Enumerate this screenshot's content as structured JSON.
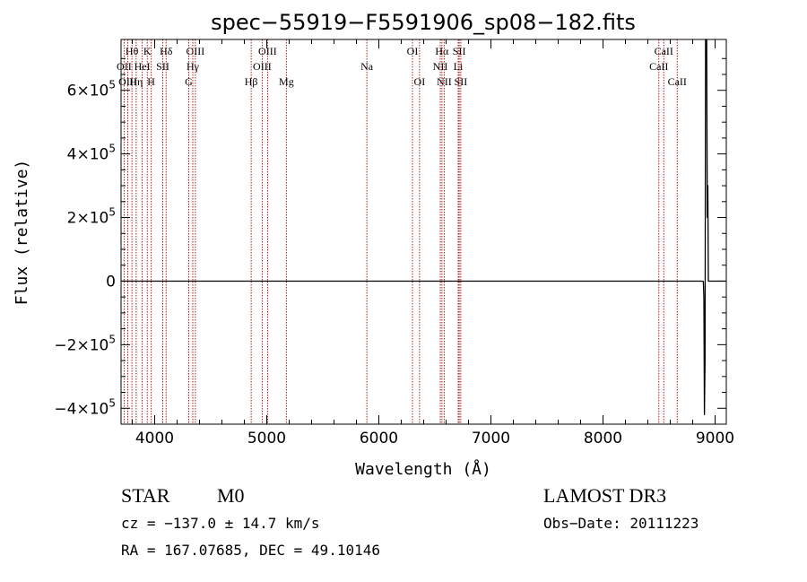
{
  "chart_data": {
    "type": "line",
    "title": "spec−55919−F5591906_sp08−182.fits",
    "xlabel": "Wavelength (Å)",
    "ylabel": "Flux (relative)",
    "xlim": [
      3700,
      9100
    ],
    "ylim": [
      -450000,
      760000
    ],
    "x_ticks": [
      {
        "value": 4000,
        "label": "4000"
      },
      {
        "value": 5000,
        "label": "5000"
      },
      {
        "value": 6000,
        "label": "6000"
      },
      {
        "value": 7000,
        "label": "7000"
      },
      {
        "value": 8000,
        "label": "8000"
      },
      {
        "value": 9000,
        "label": "9000"
      }
    ],
    "y_ticks": [
      {
        "value": 600000,
        "mantissa": "6×10",
        "exp": "5"
      },
      {
        "value": 400000,
        "mantissa": "4×10",
        "exp": "5"
      },
      {
        "value": 200000,
        "mantissa": "2×10",
        "exp": "5"
      },
      {
        "value": 0,
        "mantissa": "0",
        "exp": ""
      },
      {
        "value": -200000,
        "mantissa": "−2×10",
        "exp": "5"
      },
      {
        "value": -400000,
        "mantissa": "−4×10",
        "exp": "5"
      }
    ],
    "series": [
      {
        "name": "flux",
        "color": "#000000",
        "x": [
          3700,
          4500,
          5500,
          6500,
          7500,
          8500,
          8880,
          8895,
          8900,
          8905,
          8910,
          8915,
          8925,
          8930,
          8935,
          8940,
          9100
        ],
        "y": [
          0,
          0,
          0,
          0,
          0,
          0,
          0,
          -1000,
          -50000,
          -420000,
          -250000,
          760000,
          760000,
          200000,
          300000,
          0,
          0
        ]
      }
    ],
    "line_color": "#aa0000",
    "lines": [
      {
        "label": "Hθ",
        "wave": 3797,
        "row": 0
      },
      {
        "label": "OII",
        "wave": 3727,
        "row": 1
      },
      {
        "label": "OIII",
        "wave": 3760,
        "row": 2
      },
      {
        "label": "Hη",
        "wave": 3835,
        "row": 2
      },
      {
        "label": "HeI",
        "wave": 3889,
        "row": 1
      },
      {
        "label": "K",
        "wave": 3934,
        "row": 0
      },
      {
        "label": "H",
        "wave": 3969,
        "row": 2
      },
      {
        "label": "SII",
        "wave": 4072,
        "row": 1
      },
      {
        "label": "Hδ",
        "wave": 4102,
        "row": 0
      },
      {
        "label": "OIII",
        "wave": 4363,
        "row": 0
      },
      {
        "label": "Hγ",
        "wave": 4340,
        "row": 1
      },
      {
        "label": "G",
        "wave": 4304,
        "row": 2
      },
      {
        "label": "Hβ",
        "wave": 4861,
        "row": 2
      },
      {
        "label": "OIII",
        "wave": 5007,
        "row": 0
      },
      {
        "label": "OIII",
        "wave": 4959,
        "row": 1
      },
      {
        "label": "Mg",
        "wave": 5175,
        "row": 2
      },
      {
        "label": "Na",
        "wave": 5893,
        "row": 1
      },
      {
        "label": "OI",
        "wave": 6300,
        "row": 0
      },
      {
        "label": "OI",
        "wave": 6363,
        "row": 2
      },
      {
        "label": "Hα",
        "wave": 6563,
        "row": 0
      },
      {
        "label": "NII",
        "wave": 6548,
        "row": 1
      },
      {
        "label": "NII",
        "wave": 6583,
        "row": 2
      },
      {
        "label": "SII",
        "wave": 6717,
        "row": 0
      },
      {
        "label": "Li",
        "wave": 6708,
        "row": 1
      },
      {
        "label": "SII",
        "wave": 6731,
        "row": 2
      },
      {
        "label": "CaII",
        "wave": 8542,
        "row": 0
      },
      {
        "label": "CaII",
        "wave": 8498,
        "row": 1
      },
      {
        "label": "CaII",
        "wave": 8662,
        "row": 2
      }
    ]
  },
  "info": {
    "class": "STAR",
    "subclass": "M0",
    "survey": "LAMOST DR3",
    "cz": "cz = −137.0 ± 14.7 km/s",
    "obs_date": "Obs−Date: 20111223",
    "coords": "RA = 167.07685, DEC =  49.10146"
  }
}
